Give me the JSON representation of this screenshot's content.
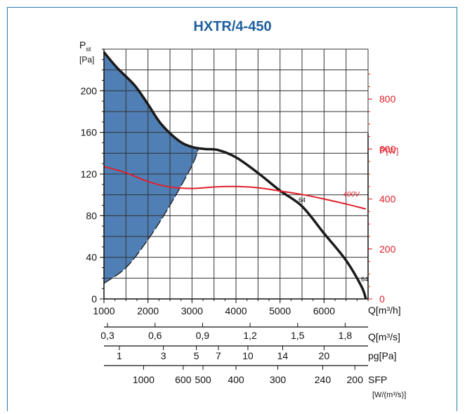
{
  "chart_data": {
    "type": "line",
    "title": "HXTR/4-450",
    "left_axis": {
      "label": "P",
      "label_sub": "st",
      "unit": "[Pa]",
      "range": [
        0,
        240
      ],
      "ticks": [
        "0",
        "40",
        "80",
        "120",
        "160",
        "200"
      ]
    },
    "right_axis": {
      "label": "P",
      "unit": "[W]",
      "range": [
        0,
        1000
      ],
      "ticks": [
        "0",
        "200",
        "400",
        "600",
        "800"
      ],
      "color": "#e0202a"
    },
    "x_axis": {
      "range": [
        1000,
        7000
      ],
      "ticks": [
        "1000",
        "2000",
        "3000",
        "4000",
        "5000",
        "6000"
      ],
      "label": "Q[m³/h]"
    },
    "scale_m3s": {
      "ticks": [
        {
          "at": 1080,
          "label": "0,3"
        },
        {
          "at": 2160,
          "label": "0,6"
        },
        {
          "at": 3240,
          "label": "0,9"
        },
        {
          "at": 4320,
          "label": "1,2"
        },
        {
          "at": 5400,
          "label": "1,5"
        },
        {
          "at": 6480,
          "label": "1,8"
        }
      ],
      "label": "Q[m³/s]"
    },
    "scale_pg": {
      "ticks": [
        {
          "at": 1350,
          "label": "1"
        },
        {
          "at": 2350,
          "label": "3"
        },
        {
          "at": 3100,
          "label": "5"
        },
        {
          "at": 3600,
          "label": "7"
        },
        {
          "at": 4270,
          "label": "10"
        },
        {
          "at": 5060,
          "label": "14"
        },
        {
          "at": 6000,
          "label": "20"
        }
      ],
      "label": "pg[Pa]"
    },
    "scale_sfp": {
      "ticks": [
        {
          "at": 1900,
          "label": "1000"
        },
        {
          "at": 2800,
          "label": "600"
        },
        {
          "at": 3250,
          "label": "500"
        },
        {
          "at": 4000,
          "label": "400"
        },
        {
          "at": 4950,
          "label": "300"
        },
        {
          "at": 5970,
          "label": "240"
        },
        {
          "at": 6700,
          "label": "200"
        }
      ],
      "label": "SFP",
      "unit": "[W/(m³/s)]"
    },
    "series": [
      {
        "name": "64",
        "axis": "left",
        "color": "#1a1a1a",
        "x": [
          1000,
          1300,
          1700,
          2000,
          2300,
          2700,
          3000,
          3300,
          3600,
          4000,
          4500,
          5000,
          5500,
          6000,
          6500,
          6850,
          6950
        ],
        "y": [
          237,
          222,
          205,
          187,
          168,
          152,
          146,
          144,
          143,
          136,
          121,
          104,
          89,
          63,
          37,
          12,
          0
        ]
      },
      {
        "name": "400V",
        "axis": "right",
        "color": "#e0202a",
        "x": [
          1000,
          1500,
          2000,
          2500,
          3000,
          3500,
          4000,
          4500,
          5000,
          5500,
          6000,
          6500,
          6950
        ],
        "y": [
          530,
          505,
          470,
          448,
          442,
          448,
          450,
          445,
          432,
          418,
          400,
          380,
          360
        ]
      }
    ],
    "shaded_region": {
      "color": "#4f7fb5",
      "lower_boundary_x": [
        1000,
        1500,
        2000,
        2500,
        3000,
        3150
      ],
      "lower_boundary_y": [
        15,
        30,
        57,
        90,
        128,
        145
      ]
    },
    "curve_labels": [
      {
        "text": "64",
        "x": 5500,
        "y": 93
      },
      {
        "text": "400V",
        "x": 6620,
        "y": 410,
        "axis": "right"
      },
      {
        "text": "64",
        "x": 6920,
        "y": 17
      }
    ],
    "grid": true
  }
}
